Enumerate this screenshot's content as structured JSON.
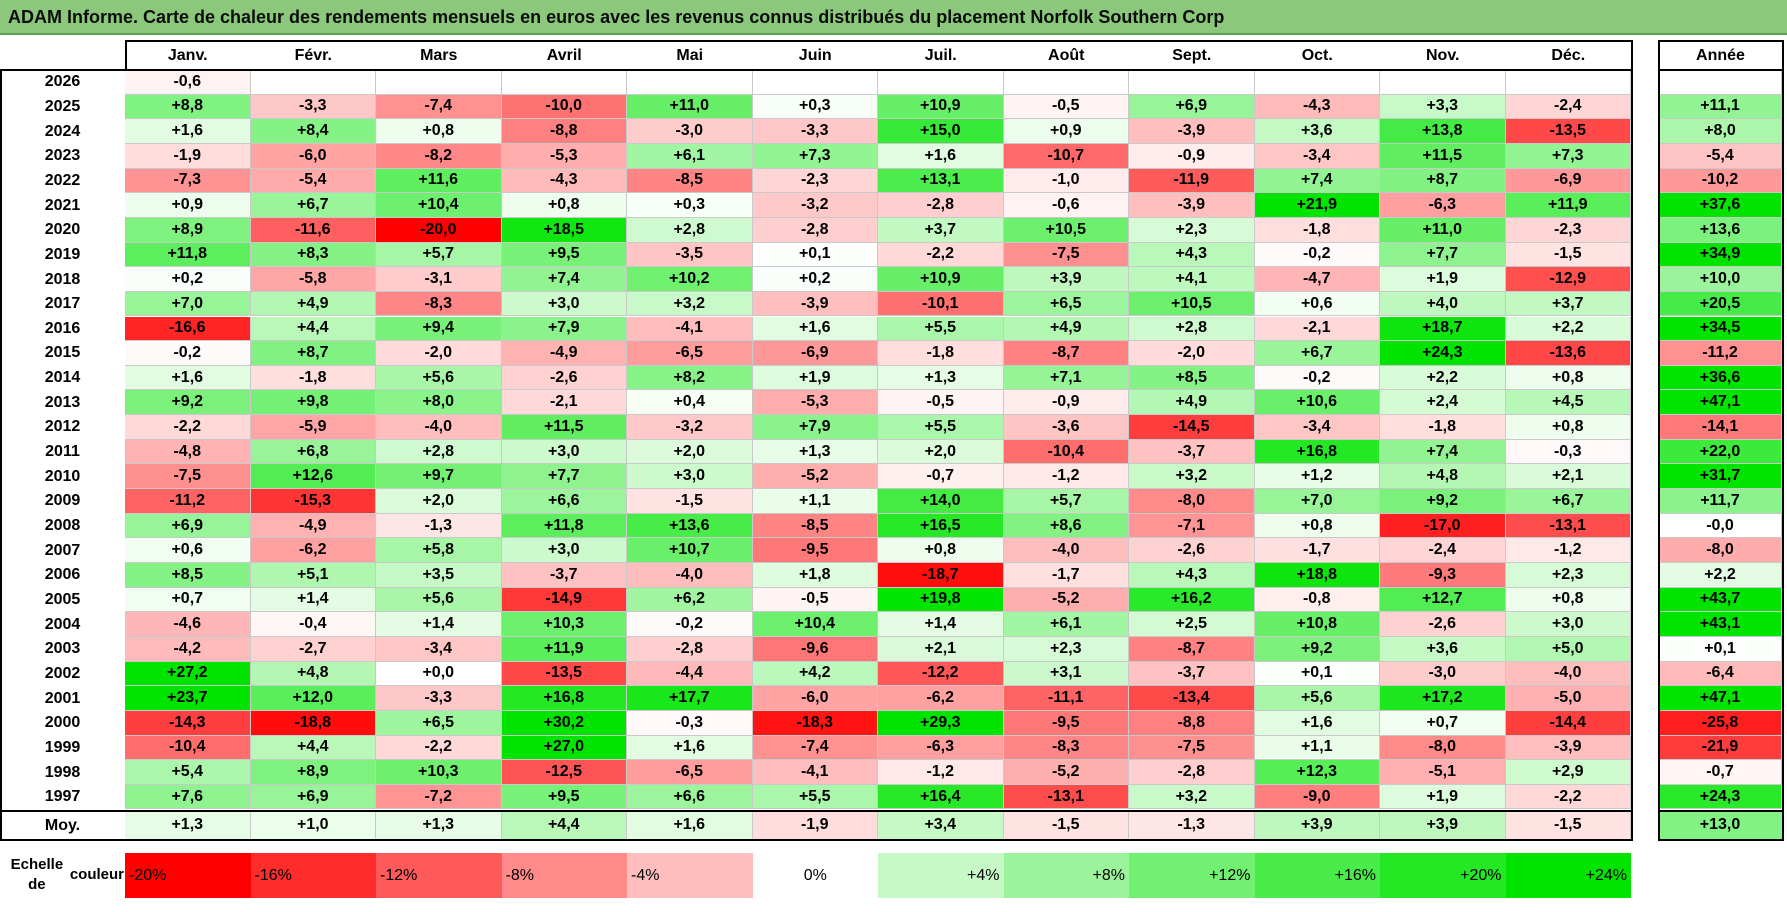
{
  "title": "ADAM Informe. Carte de chaleur des rendements mensuels en euros avec les revenus connus distribués du placement Norfolk Southern Corp",
  "chart_data": {
    "type": "heatmap",
    "months": [
      "Janv.",
      "Févr.",
      "Mars",
      "Avril",
      "Mai",
      "Juin",
      "Juil.",
      "Août",
      "Sept.",
      "Oct.",
      "Nov.",
      "Déc."
    ],
    "annual_header": "Année",
    "avg_label": "Moy.",
    "rows": [
      {
        "year": "2026",
        "values": [
          "-0,6",
          null,
          null,
          null,
          null,
          null,
          null,
          null,
          null,
          null,
          null,
          null
        ],
        "annual": null
      },
      {
        "year": "2025",
        "values": [
          "+8,8",
          "-3,3",
          "-7,4",
          "-10,0",
          "+11,0",
          "+0,3",
          "+10,9",
          "-0,5",
          "+6,9",
          "-4,3",
          "+3,3",
          "-2,4"
        ],
        "annual": "+11,1"
      },
      {
        "year": "2024",
        "values": [
          "+1,6",
          "+8,4",
          "+0,8",
          "-8,8",
          "-3,0",
          "-3,3",
          "+15,0",
          "+0,9",
          "-3,9",
          "+3,6",
          "+13,8",
          "-13,5"
        ],
        "annual": "+8,0"
      },
      {
        "year": "2023",
        "values": [
          "-1,9",
          "-6,0",
          "-8,2",
          "-5,3",
          "+6,1",
          "+7,3",
          "+1,6",
          "-10,7",
          "-0,9",
          "-3,4",
          "+11,5",
          "+7,3"
        ],
        "annual": "-5,4"
      },
      {
        "year": "2022",
        "values": [
          "-7,3",
          "-5,4",
          "+11,6",
          "-4,3",
          "-8,5",
          "-2,3",
          "+13,1",
          "-1,0",
          "-11,9",
          "+7,4",
          "+8,7",
          "-6,9"
        ],
        "annual": "-10,2"
      },
      {
        "year": "2021",
        "values": [
          "+0,9",
          "+6,7",
          "+10,4",
          "+0,8",
          "+0,3",
          "-3,2",
          "-2,8",
          "-0,6",
          "-3,9",
          "+21,9",
          "-6,3",
          "+11,9"
        ],
        "annual": "+37,6"
      },
      {
        "year": "2020",
        "values": [
          "+8,9",
          "-11,6",
          "-20,0",
          "+18,5",
          "+2,8",
          "-2,8",
          "+3,7",
          "+10,5",
          "+2,3",
          "-1,8",
          "+11,0",
          "-2,3"
        ],
        "annual": "+13,6"
      },
      {
        "year": "2019",
        "values": [
          "+11,8",
          "+8,3",
          "+5,7",
          "+9,5",
          "-3,5",
          "+0,1",
          "-2,2",
          "-7,5",
          "+4,3",
          "-0,2",
          "+7,7",
          "-1,5"
        ],
        "annual": "+34,9"
      },
      {
        "year": "2018",
        "values": [
          "+0,2",
          "-5,8",
          "-3,1",
          "+7,4",
          "+10,2",
          "+0,2",
          "+10,9",
          "+3,9",
          "+4,1",
          "-4,7",
          "+1,9",
          "-12,9"
        ],
        "annual": "+10,0"
      },
      {
        "year": "2017",
        "values": [
          "+7,0",
          "+4,9",
          "-8,3",
          "+3,0",
          "+3,2",
          "-3,9",
          "-10,1",
          "+6,5",
          "+10,5",
          "+0,6",
          "+4,0",
          "+3,7"
        ],
        "annual": "+20,5"
      },
      {
        "year": "2016",
        "values": [
          "-16,6",
          "+4,4",
          "+9,4",
          "+7,9",
          "-4,1",
          "+1,6",
          "+5,5",
          "+4,9",
          "+2,8",
          "-2,1",
          "+18,7",
          "+2,2"
        ],
        "annual": "+34,5"
      },
      {
        "year": "2015",
        "values": [
          "-0,2",
          "+8,7",
          "-2,0",
          "-4,9",
          "-6,5",
          "-6,9",
          "-1,8",
          "-8,7",
          "-2,0",
          "+6,7",
          "+24,3",
          "-13,6"
        ],
        "annual": "-11,2"
      },
      {
        "year": "2014",
        "values": [
          "+1,6",
          "-1,8",
          "+5,6",
          "-2,6",
          "+8,2",
          "+1,9",
          "+1,3",
          "+7,1",
          "+8,5",
          "-0,2",
          "+2,2",
          "+0,8"
        ],
        "annual": "+36,6"
      },
      {
        "year": "2013",
        "values": [
          "+9,2",
          "+9,8",
          "+8,0",
          "-2,1",
          "+0,4",
          "-5,3",
          "-0,5",
          "-0,9",
          "+4,9",
          "+10,6",
          "+2,4",
          "+4,5"
        ],
        "annual": "+47,1"
      },
      {
        "year": "2012",
        "values": [
          "-2,2",
          "-5,9",
          "-4,0",
          "+11,5",
          "-3,2",
          "+7,9",
          "+5,5",
          "-3,6",
          "-14,5",
          "-3,4",
          "-1,8",
          "+0,8"
        ],
        "annual": "-14,1"
      },
      {
        "year": "2011",
        "values": [
          "-4,8",
          "+6,8",
          "+2,8",
          "+3,0",
          "+2,0",
          "+1,3",
          "+2,0",
          "-10,4",
          "-3,7",
          "+16,8",
          "+7,4",
          "-0,3"
        ],
        "annual": "+22,0"
      },
      {
        "year": "2010",
        "values": [
          "-7,5",
          "+12,6",
          "+9,7",
          "+7,7",
          "+3,0",
          "-5,2",
          "-0,7",
          "-1,2",
          "+3,2",
          "+1,2",
          "+4,8",
          "+2,1"
        ],
        "annual": "+31,7"
      },
      {
        "year": "2009",
        "values": [
          "-11,2",
          "-15,3",
          "+2,0",
          "+6,6",
          "-1,5",
          "+1,1",
          "+14,0",
          "+5,7",
          "-8,0",
          "+7,0",
          "+9,2",
          "+6,7"
        ],
        "annual": "+11,7"
      },
      {
        "year": "2008",
        "values": [
          "+6,9",
          "-4,9",
          "-1,3",
          "+11,8",
          "+13,6",
          "-8,5",
          "+16,5",
          "+8,6",
          "-7,1",
          "+0,8",
          "-17,0",
          "-13,1"
        ],
        "annual": "-0,0"
      },
      {
        "year": "2007",
        "values": [
          "+0,6",
          "-6,2",
          "+5,8",
          "+3,0",
          "+10,7",
          "-9,5",
          "+0,8",
          "-4,0",
          "-2,6",
          "-1,7",
          "-2,4",
          "-1,2"
        ],
        "annual": "-8,0"
      },
      {
        "year": "2006",
        "values": [
          "+8,5",
          "+5,1",
          "+3,5",
          "-3,7",
          "-4,0",
          "+1,8",
          "-18,7",
          "-1,7",
          "+4,3",
          "+18,8",
          "-9,3",
          "+2,3"
        ],
        "annual": "+2,2"
      },
      {
        "year": "2005",
        "values": [
          "+0,7",
          "+1,4",
          "+5,6",
          "-14,9",
          "+6,2",
          "-0,5",
          "+19,8",
          "-5,2",
          "+16,2",
          "-0,8",
          "+12,7",
          "+0,8"
        ],
        "annual": "+43,7"
      },
      {
        "year": "2004",
        "values": [
          "-4,6",
          "-0,4",
          "+1,4",
          "+10,3",
          "-0,2",
          "+10,4",
          "+1,4",
          "+6,1",
          "+2,5",
          "+10,8",
          "-2,6",
          "+3,0"
        ],
        "annual": "+43,1"
      },
      {
        "year": "2003",
        "values": [
          "-4,2",
          "-2,7",
          "-3,4",
          "+11,9",
          "-2,8",
          "-9,6",
          "+2,1",
          "+2,3",
          "-8,7",
          "+9,2",
          "+3,6",
          "+5,0"
        ],
        "annual": "+0,1"
      },
      {
        "year": "2002",
        "values": [
          "+27,2",
          "+4,8",
          "+0,0",
          "-13,5",
          "-4,4",
          "+4,2",
          "-12,2",
          "+3,1",
          "-3,7",
          "+0,1",
          "-3,0",
          "-4,0"
        ],
        "annual": "-6,4"
      },
      {
        "year": "2001",
        "values": [
          "+23,7",
          "+12,0",
          "-3,3",
          "+16,8",
          "+17,7",
          "-6,0",
          "-6,2",
          "-11,1",
          "-13,4",
          "+5,6",
          "+17,2",
          "-5,0"
        ],
        "annual": "+47,1"
      },
      {
        "year": "2000",
        "values": [
          "-14,3",
          "-18,8",
          "+6,5",
          "+30,2",
          "-0,3",
          "-18,3",
          "+29,3",
          "-9,5",
          "-8,8",
          "+1,6",
          "+0,7",
          "-14,4"
        ],
        "annual": "-25,8"
      },
      {
        "year": "1999",
        "values": [
          "-10,4",
          "+4,4",
          "-2,2",
          "+27,0",
          "+1,6",
          "-7,4",
          "-6,3",
          "-8,3",
          "-7,5",
          "+1,1",
          "-8,0",
          "-3,9"
        ],
        "annual": "-21,9"
      },
      {
        "year": "1998",
        "values": [
          "+5,4",
          "+8,9",
          "+10,3",
          "-12,5",
          "-6,5",
          "-4,1",
          "-1,2",
          "-5,2",
          "-2,8",
          "+12,3",
          "-5,1",
          "+2,9"
        ],
        "annual": "-0,7"
      },
      {
        "year": "1997",
        "values": [
          "+7,6",
          "+6,9",
          "-7,2",
          "+9,5",
          "+6,6",
          "+5,5",
          "+16,4",
          "-13,1",
          "+3,2",
          "-9,0",
          "+1,9",
          "-2,2"
        ],
        "annual": "+24,3"
      }
    ],
    "average": {
      "values": [
        "+1,3",
        "+1,0",
        "+1,3",
        "+4,4",
        "+1,6",
        "-1,9",
        "+3,4",
        "-1,5",
        "-1,3",
        "+3,9",
        "+3,9",
        "-1,5"
      ],
      "annual": "+13,0"
    },
    "scale": {
      "label_line1": "Echelle de",
      "label_line2": "couleur",
      "steps": [
        "-20%",
        "-16%",
        "-12%",
        "-8%",
        "-4%",
        "0%",
        "+4%",
        "+8%",
        "+12%",
        "+16%",
        "+20%",
        "+24%"
      ],
      "step_values": [
        -20,
        -16,
        -12,
        -8,
        -4,
        0,
        4,
        8,
        12,
        16,
        20,
        24
      ]
    },
    "colors": {
      "negative_max": "#ff0000",
      "neutral": "#ffffff",
      "positive_max": "#00e400",
      "title_bg": "#8bc87c"
    }
  }
}
